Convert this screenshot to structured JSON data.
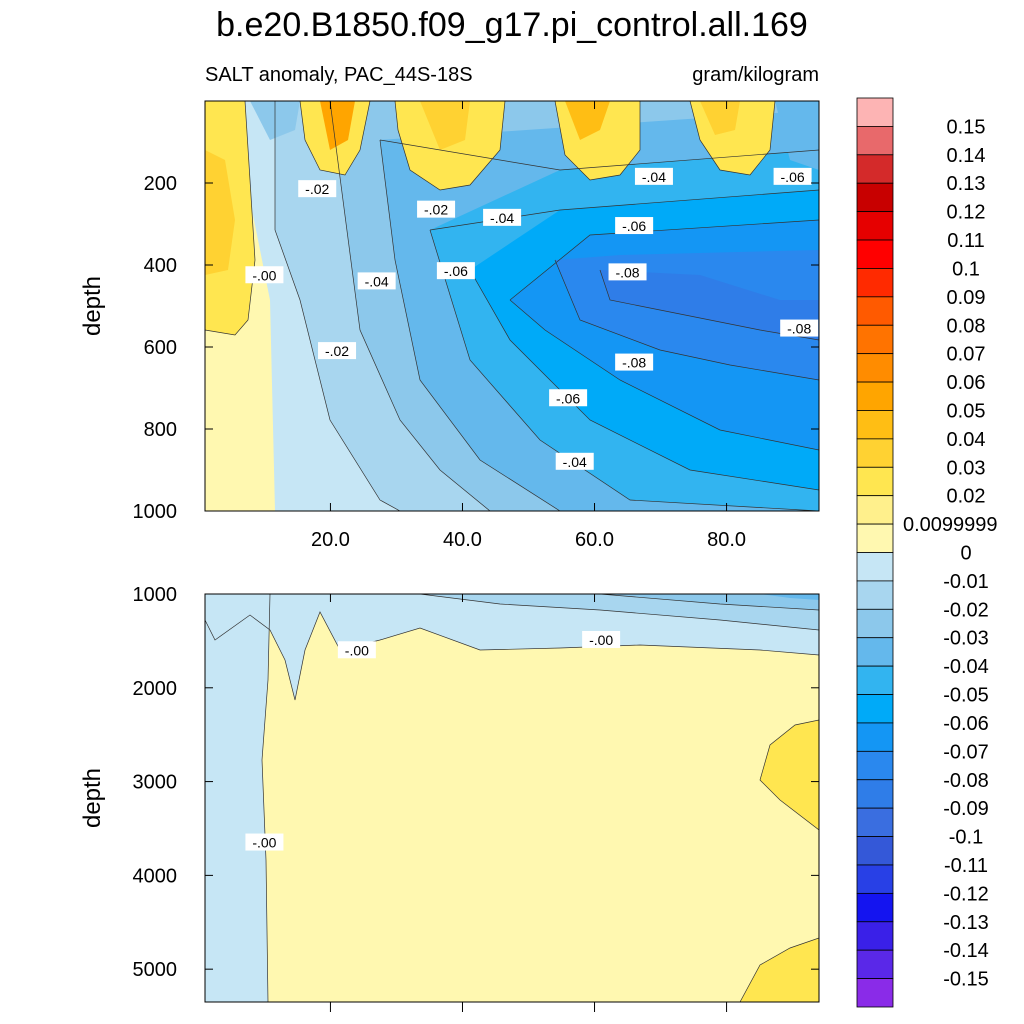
{
  "title": "b.e20.B1850.f09_g17.pi_control.all.169",
  "subtitle_left": "SALT anomaly, PAC_44S-18S",
  "subtitle_right": "gram/kilogram",
  "chart_data": [
    {
      "type": "heatmap",
      "panel": "upper",
      "variable": "SALT anomaly",
      "region": "PAC_44S-18S",
      "units": "gram/kilogram",
      "xlabel": "",
      "ylabel": "depth",
      "xlim": [
        1,
        94
      ],
      "ylim": [
        1000,
        0
      ],
      "x_ticks": [
        20,
        40,
        60,
        80
      ],
      "x_tick_labels": [
        "20.0",
        "40.0",
        "60.0",
        "80.0"
      ],
      "y_ticks": [
        200,
        400,
        600,
        800,
        1000
      ],
      "y_tick_labels": [
        "200",
        "400",
        "600",
        "800",
        "1000"
      ],
      "contour_labels": [
        {
          "text": "-.02",
          "x": 18,
          "y": 215
        },
        {
          "text": "-.02",
          "x": 36,
          "y": 265
        },
        {
          "text": "-.04",
          "x": 46,
          "y": 285
        },
        {
          "text": "-.04",
          "x": 69,
          "y": 185
        },
        {
          "text": "-.06",
          "x": 90,
          "y": 185
        },
        {
          "text": "-.06",
          "x": 66,
          "y": 305
        },
        {
          "text": "-.06",
          "x": 39,
          "y": 415
        },
        {
          "text": "-.08",
          "x": 65,
          "y": 418
        },
        {
          "text": "-.00",
          "x": 10,
          "y": 425
        },
        {
          "text": "-.04",
          "x": 27,
          "y": 440
        },
        {
          "text": "-.08",
          "x": 91,
          "y": 555
        },
        {
          "text": "-.02",
          "x": 21,
          "y": 610
        },
        {
          "text": "-.08",
          "x": 66,
          "y": 638
        },
        {
          "text": "-.06",
          "x": 56,
          "y": 725
        },
        {
          "text": "-.04",
          "x": 57,
          "y": 880
        }
      ]
    },
    {
      "type": "heatmap",
      "panel": "lower",
      "ylabel": "depth",
      "xlim": [
        1,
        94
      ],
      "ylim": [
        5350,
        1000
      ],
      "y_ticks": [
        1000,
        2000,
        3000,
        4000,
        5000
      ],
      "y_tick_labels": [
        "1000",
        "2000",
        "3000",
        "4000",
        "5000"
      ],
      "contour_labels": [
        {
          "text": "-.00",
          "x": 24,
          "y": 1600
        },
        {
          "text": "-.00",
          "x": 61,
          "y": 1490
        },
        {
          "text": "-.00",
          "x": 10,
          "y": 3650
        }
      ]
    }
  ],
  "colorbar": {
    "levels": [
      "0.15",
      "0.14",
      "0.13",
      "0.12",
      "0.11",
      "0.1",
      "0.09",
      "0.08",
      "0.07",
      "0.06",
      "0.05",
      "0.04",
      "0.03",
      "0.02",
      "0.0099999",
      "0",
      "-0.01",
      "-0.02",
      "-0.03",
      "-0.04",
      "-0.05",
      "-0.06",
      "-0.07",
      "-0.08",
      "-0.09",
      "-0.1",
      "-0.11",
      "-0.12",
      "-0.13",
      "-0.14",
      "-0.15"
    ],
    "colors": [
      "#fdb4b4",
      "#e8696b",
      "#d42a2a",
      "#c80000",
      "#e60000",
      "#ff0000",
      "#ff2a00",
      "#ff5a00",
      "#ff7300",
      "#ff8c00",
      "#ffa500",
      "#ffbe14",
      "#ffd232",
      "#ffe650",
      "#fff08c",
      "#fff8b0",
      "#c6e6f5",
      "#a8d6ef",
      "#8cc8eb",
      "#64b8ec",
      "#32b4f0",
      "#00aaf8",
      "#1496f4",
      "#2a88ee",
      "#2f7de8",
      "#3a6ee0",
      "#3458d8",
      "#2840e6",
      "#1414f0",
      "#3a20e8",
      "#5a28e8",
      "#8a2be8"
    ]
  }
}
